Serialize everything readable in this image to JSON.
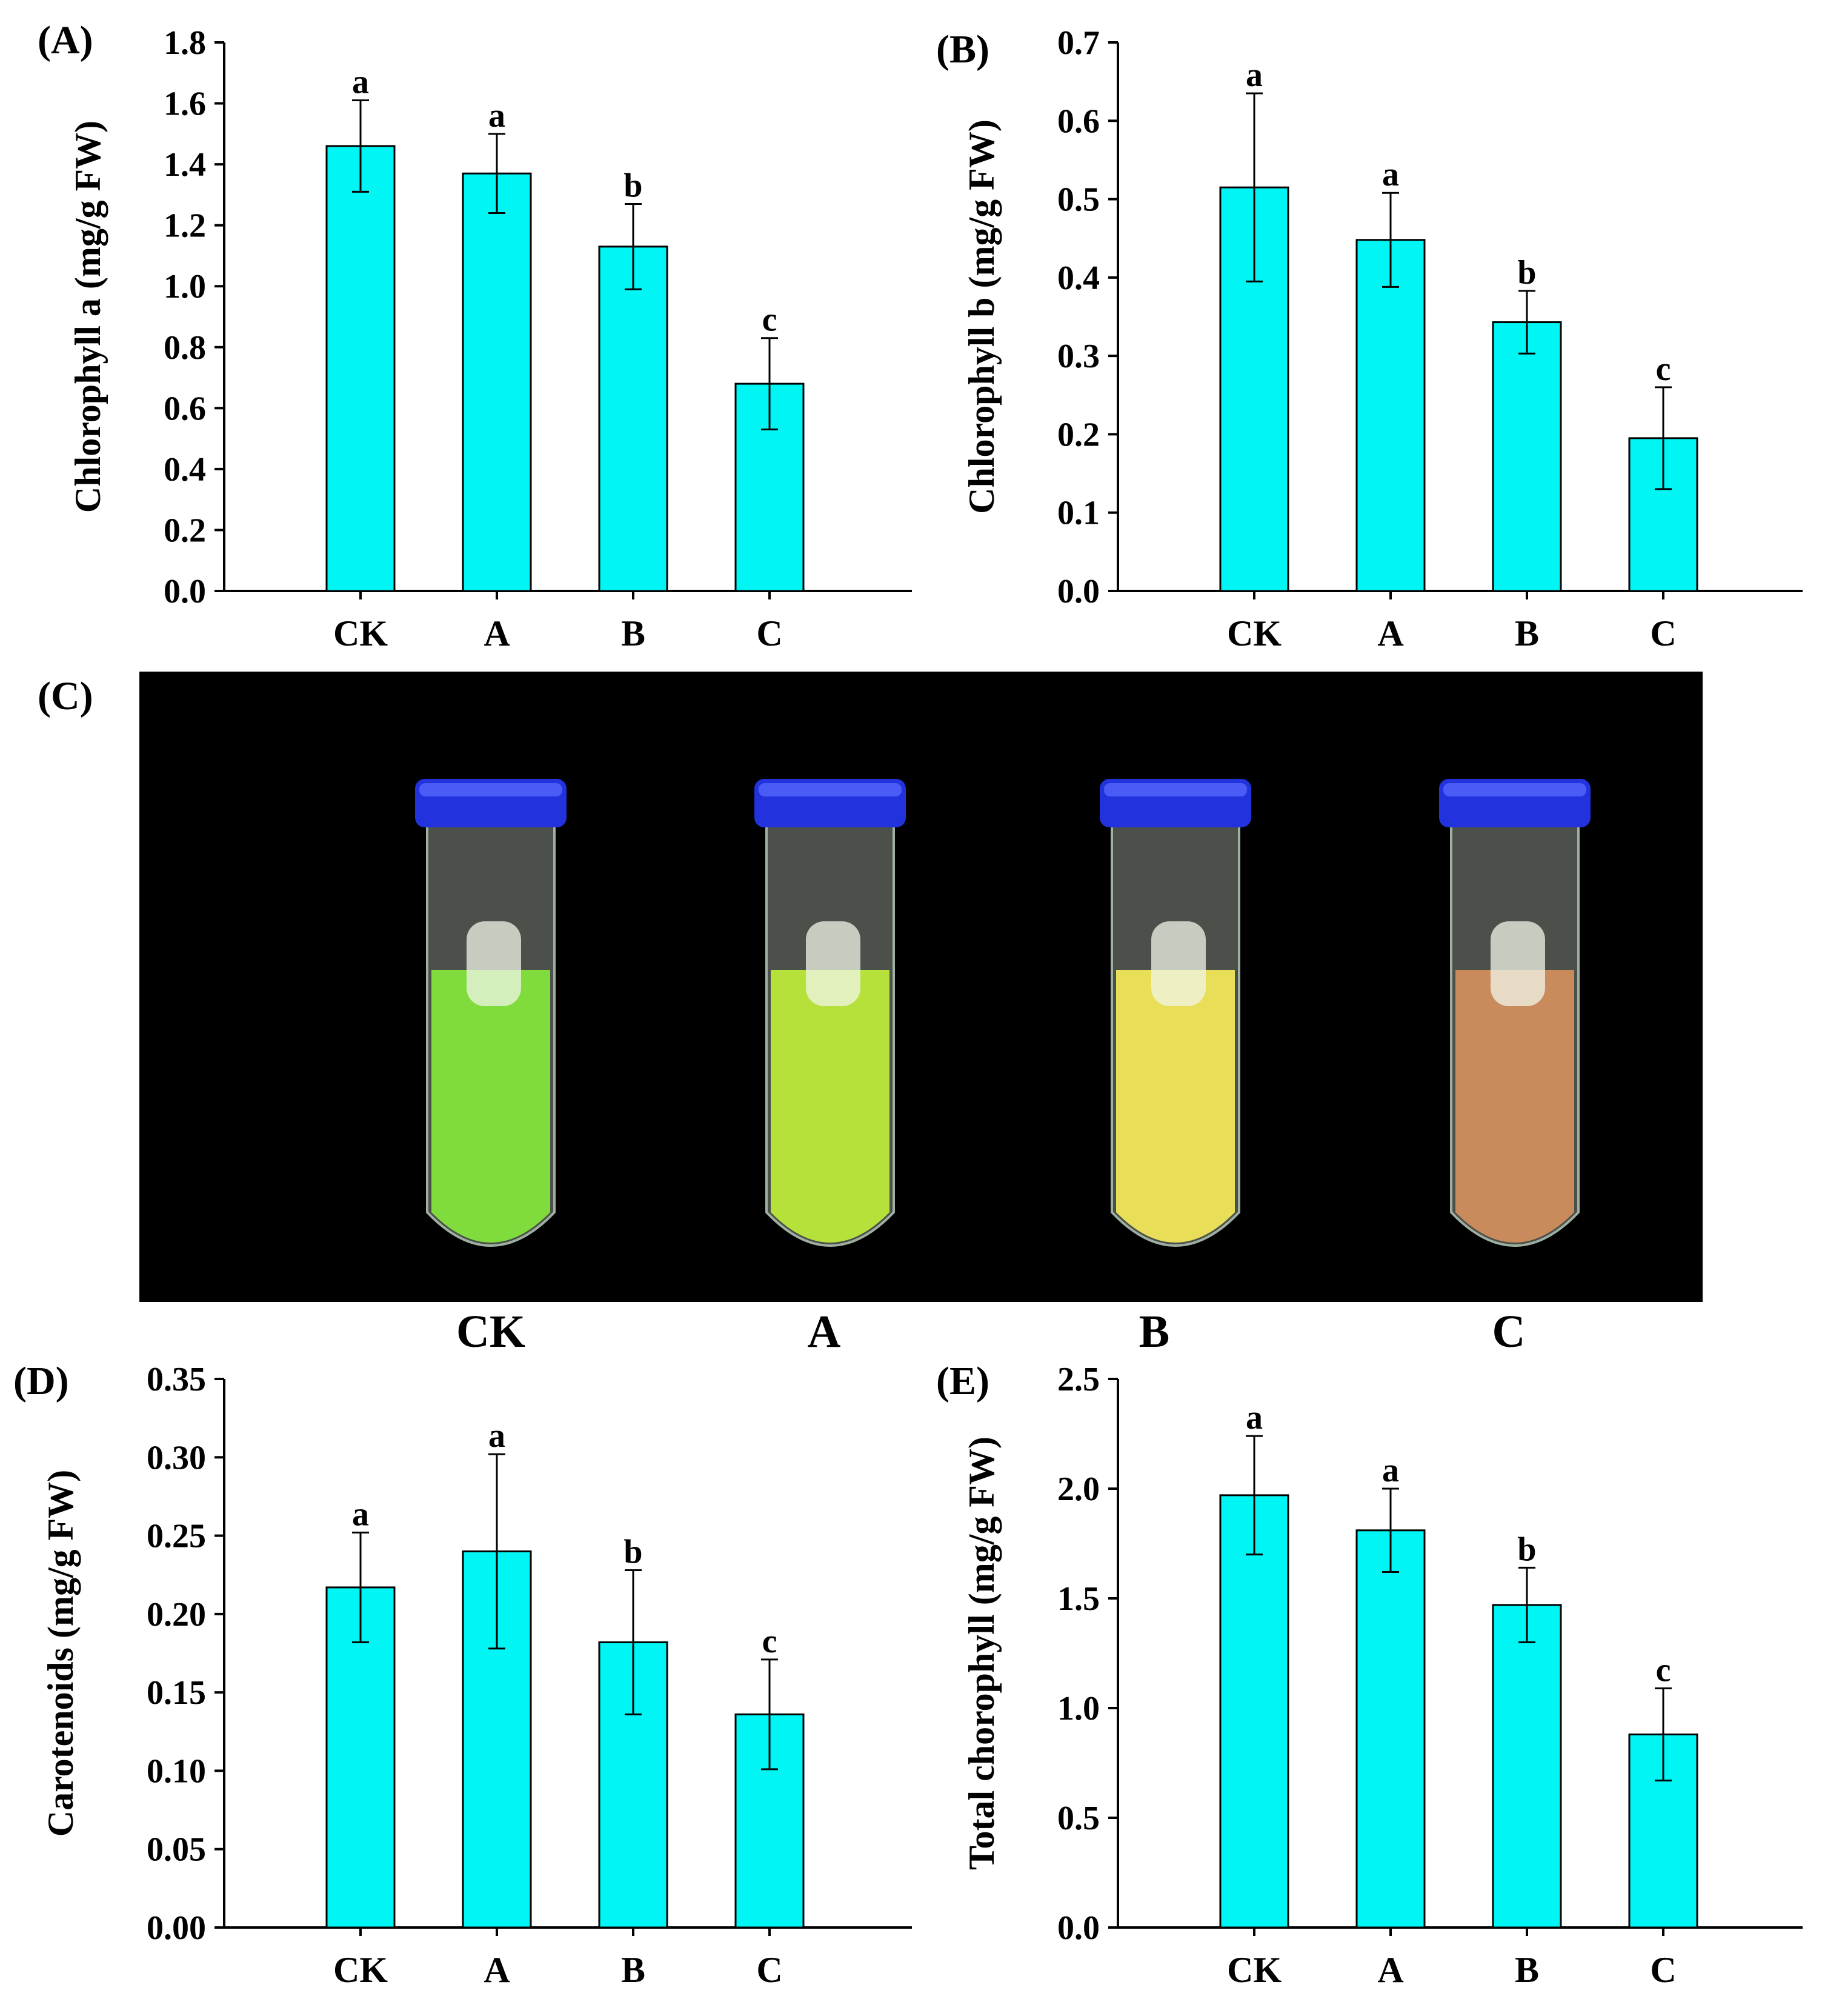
{
  "colors": {
    "bar": "#00f5f5",
    "photo_bg": "#000000",
    "cap": "#2233dd"
  },
  "photo": {
    "panel_label": "(C)",
    "tubes": [
      {
        "label": "CK",
        "liquid": "#7fdc3c"
      },
      {
        "label": "A",
        "liquid": "#b6e03a"
      },
      {
        "label": "B",
        "liquid": "#e8de58"
      },
      {
        "label": "C",
        "liquid": "#c98a5c"
      }
    ]
  },
  "chart_data": [
    {
      "panel_label": "(A)",
      "type": "bar",
      "ylabel": "Chlorophyll a (mg/g FW)",
      "categories": [
        "CK",
        "A",
        "B",
        "C"
      ],
      "values": [
        1.46,
        1.37,
        1.13,
        0.68
      ],
      "errors": [
        0.15,
        0.13,
        0.14,
        0.15
      ],
      "significance": [
        "a",
        "a",
        "b",
        "c"
      ],
      "ylim": [
        0,
        1.8
      ],
      "yticks": [
        "0.0",
        "0.2",
        "0.4",
        "0.6",
        "0.8",
        "1.0",
        "1.2",
        "1.4",
        "1.6",
        "1.8"
      ]
    },
    {
      "panel_label": "(B)",
      "type": "bar",
      "ylabel": "Chlorophyll b (mg/g FW)",
      "categories": [
        "CK",
        "A",
        "B",
        "C"
      ],
      "values": [
        0.515,
        0.448,
        0.343,
        0.195
      ],
      "errors": [
        0.12,
        0.06,
        0.04,
        0.065
      ],
      "significance": [
        "a",
        "a",
        "b",
        "c"
      ],
      "ylim": [
        0,
        0.7
      ],
      "yticks": [
        "0.0",
        "0.1",
        "0.2",
        "0.3",
        "0.4",
        "0.5",
        "0.6",
        "0.7"
      ]
    },
    {
      "panel_label": "(D)",
      "type": "bar",
      "ylabel": "Carotenoids (mg/g FW)",
      "categories": [
        "CK",
        "A",
        "B",
        "C"
      ],
      "values": [
        0.217,
        0.24,
        0.182,
        0.136
      ],
      "errors": [
        0.035,
        0.062,
        0.046,
        0.035
      ],
      "significance": [
        "a",
        "a",
        "b",
        "c"
      ],
      "ylim": [
        0,
        0.35
      ],
      "yticks": [
        "0.00",
        "0.05",
        "0.10",
        "0.15",
        "0.20",
        "0.25",
        "0.30",
        "0.35"
      ]
    },
    {
      "panel_label": "(E)",
      "type": "bar",
      "ylabel": "Total chorophyll (mg/g FW)",
      "categories": [
        "CK",
        "A",
        "B",
        "C"
      ],
      "values": [
        1.97,
        1.81,
        1.47,
        0.88
      ],
      "errors": [
        0.27,
        0.19,
        0.17,
        0.21
      ],
      "significance": [
        "a",
        "a",
        "b",
        "c"
      ],
      "ylim": [
        0,
        2.5
      ],
      "yticks": [
        "0.0",
        "0.5",
        "1.0",
        "1.5",
        "2.0",
        "2.5"
      ]
    }
  ]
}
